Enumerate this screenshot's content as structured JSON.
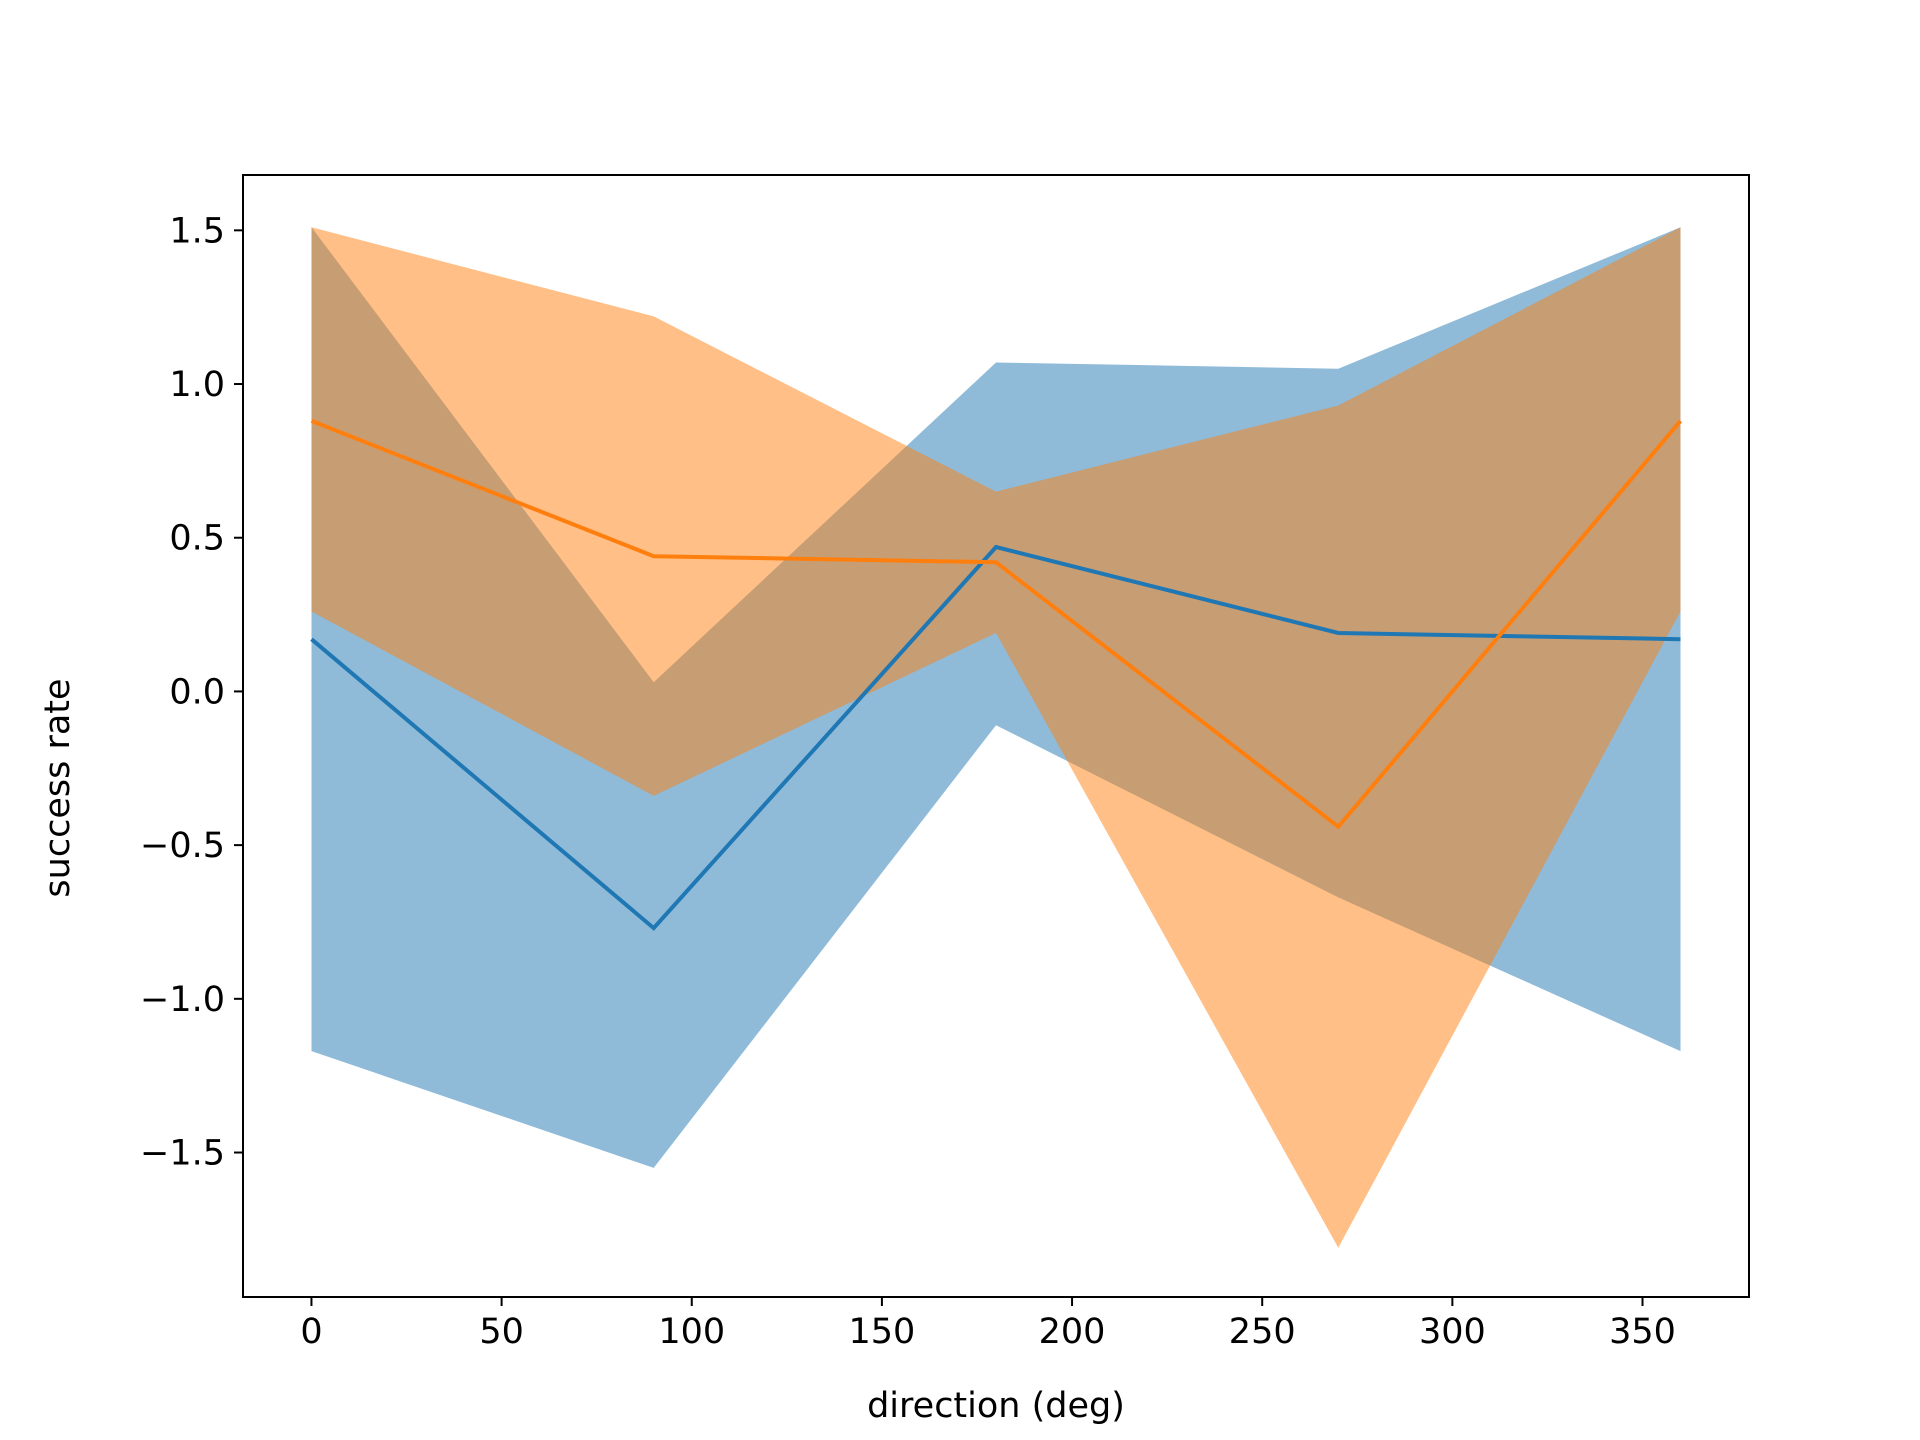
{
  "chart_data": {
    "type": "line",
    "title": "",
    "xlabel": "direction (deg)",
    "ylabel": "success rate",
    "x": [
      0,
      90,
      180,
      270,
      360
    ],
    "xlim": [
      -18,
      378
    ],
    "ylim": [
      -1.97,
      1.68
    ],
    "xticks": [
      0,
      50,
      100,
      150,
      200,
      250,
      300,
      350
    ],
    "xtick_labels": [
      "0",
      "50",
      "100",
      "150",
      "200",
      "250",
      "300",
      "350"
    ],
    "yticks": [
      -1.5,
      -1.0,
      -0.5,
      0.0,
      0.5,
      1.0,
      1.5
    ],
    "ytick_labels": [
      "−1.5",
      "−1.0",
      "−0.5",
      "0.0",
      "0.5",
      "1.0",
      "1.5"
    ],
    "grid": false,
    "legend": null,
    "series": [
      {
        "color": "#1f77b4",
        "band_alpha": 0.5,
        "values": [
          0.17,
          -0.77,
          0.47,
          0.19,
          0.17
        ],
        "lower": [
          -1.17,
          -1.55,
          -0.11,
          -0.67,
          -1.17
        ],
        "upper": [
          1.51,
          0.03,
          1.07,
          1.05,
          1.51
        ]
      },
      {
        "color": "#ff7f0e",
        "band_alpha": 0.5,
        "values": [
          0.88,
          0.44,
          0.42,
          -0.44,
          0.88
        ],
        "lower": [
          0.26,
          -0.34,
          0.19,
          -1.81,
          0.26
        ],
        "upper": [
          1.51,
          1.22,
          0.65,
          0.93,
          1.51
        ]
      }
    ]
  }
}
